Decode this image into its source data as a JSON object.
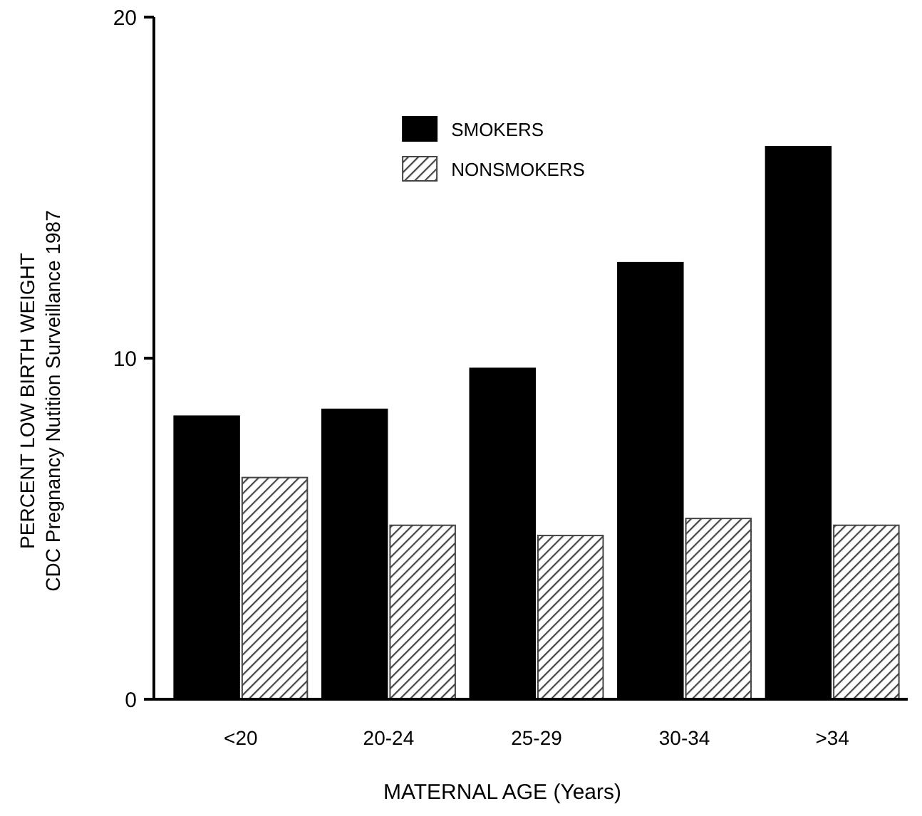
{
  "chart_data": {
    "type": "bar",
    "xlabel": "MATERNAL AGE (Years)",
    "ylabel": "PERCENT LOW BIRTH WEIGHT\nCDC Pregnancy Nutition Surveillance 1987",
    "categories": [
      "<20",
      "20-24",
      "25-29",
      "30-34",
      ">34"
    ],
    "series": [
      {
        "name": "SMOKERS",
        "color": "#000000",
        "values": [
          8.3,
          8.5,
          9.7,
          12.8,
          16.2
        ]
      },
      {
        "name": "NONSMOKERS",
        "color": "#444444",
        "values": [
          6.5,
          5.1,
          4.8,
          5.3,
          5.1
        ]
      }
    ],
    "ylim": [
      0,
      20
    ],
    "yticks": [
      0,
      10,
      20
    ],
    "grid": false,
    "legend": "top"
  }
}
